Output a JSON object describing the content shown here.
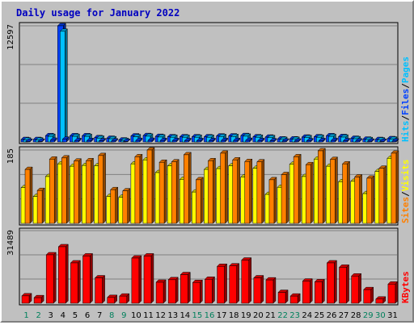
{
  "title": "Daily usage for January 2022",
  "colors": {
    "background": "#c0c0c0",
    "panel": "#c0c0c0",
    "gridline": "#808080",
    "title": "#0000c0",
    "hits": "#00c0ff",
    "files": "#0040ff",
    "sites": "#ff8000",
    "visits": "#ffff00",
    "kbytes": "#ff0000",
    "weekday": "#000000",
    "weekend": "#00805c"
  },
  "chart_data": [
    {
      "type": "bar",
      "name": "hits-files",
      "ymax_label": "12597",
      "ylim": [
        0,
        12597
      ],
      "right_labels": [
        {
          "text": "Hits",
          "color_key": "hits"
        },
        {
          "text": "/",
          "color_key": "weekday"
        },
        {
          "text": "Files",
          "color_key": "files"
        },
        {
          "text": "/",
          "color_key": "weekday"
        },
        {
          "text": "Pages",
          "color_key": "hits"
        }
      ],
      "series": [
        {
          "name": "Hits",
          "color_key": "files",
          "values": [
            260,
            260,
            680,
            12597,
            670,
            670,
            460,
            390,
            210,
            650,
            690,
            600,
            560,
            560,
            560,
            560,
            640,
            650,
            690,
            560,
            520,
            320,
            330,
            520,
            560,
            670,
            580,
            390,
            300,
            260,
            350
          ]
        },
        {
          "name": "Files",
          "color_key": "hits",
          "values": [
            200,
            200,
            600,
            12000,
            600,
            600,
            400,
            340,
            160,
            560,
            620,
            530,
            500,
            500,
            500,
            500,
            580,
            580,
            620,
            500,
            460,
            270,
            280,
            460,
            500,
            600,
            520,
            340,
            250,
            210,
            300
          ]
        },
        {
          "name": "Pages",
          "color_key": "files",
          "values": [
            70,
            70,
            180,
            300,
            150,
            150,
            120,
            100,
            60,
            160,
            170,
            150,
            150,
            140,
            140,
            140,
            160,
            160,
            170,
            140,
            120,
            90,
            90,
            120,
            140,
            160,
            130,
            100,
            80,
            70,
            90
          ]
        }
      ]
    },
    {
      "type": "bar",
      "name": "sites-visits",
      "ymax_label": "185",
      "ylim": [
        0,
        185
      ],
      "right_labels": [
        {
          "text": "Sites",
          "color_key": "sites"
        },
        {
          "text": "/",
          "color_key": "weekday"
        },
        {
          "text": "Visits",
          "color_key": "visits"
        }
      ],
      "series": [
        {
          "name": "Visits",
          "color_key": "visits",
          "values": [
            90,
            68,
            118,
            150,
            144,
            146,
            145,
            68,
            66,
            150,
            160,
            128,
            145,
            111,
            79,
            136,
            138,
            145,
            117,
            139,
            73,
            91,
            149,
            118,
            162,
            144,
            105,
            106,
            75,
            131,
            164
          ]
        },
        {
          "name": "Sites",
          "color_key": "sites",
          "values": [
            136,
            83,
            162,
            165,
            157,
            158,
            171,
            85,
            82,
            168,
            185,
            154,
            155,
            173,
            110,
            158,
            177,
            160,
            156,
            155,
            110,
            123,
            168,
            148,
            183,
            161,
            150,
            117,
            114,
            139,
            177
          ]
        }
      ]
    },
    {
      "type": "bar",
      "name": "kbytes",
      "ymax_label": "31489",
      "ylim": [
        0,
        31489
      ],
      "right_labels": [
        {
          "text": "KBytes",
          "color_key": "kbytes"
        }
      ],
      "series": [
        {
          "name": "KBytes",
          "color_key": "kbytes",
          "values": [
            3200,
            2400,
            21000,
            24500,
            17500,
            20500,
            11000,
            2500,
            3100,
            19600,
            20500,
            9100,
            10200,
            12400,
            9000,
            10400,
            16000,
            16200,
            18700,
            11000,
            10100,
            4700,
            3100,
            9600,
            9300,
            17500,
            15600,
            11800,
            5900,
            1800,
            8300
          ]
        }
      ]
    }
  ],
  "days": [
    "1",
    "2",
    "3",
    "4",
    "5",
    "6",
    "7",
    "8",
    "9",
    "10",
    "11",
    "12",
    "13",
    "14",
    "15",
    "16",
    "17",
    "18",
    "19",
    "20",
    "21",
    "22",
    "23",
    "24",
    "25",
    "26",
    "27",
    "28",
    "29",
    "30",
    "31"
  ],
  "weekend_days": [
    1,
    2,
    8,
    9,
    15,
    16,
    22,
    23,
    29,
    30
  ]
}
